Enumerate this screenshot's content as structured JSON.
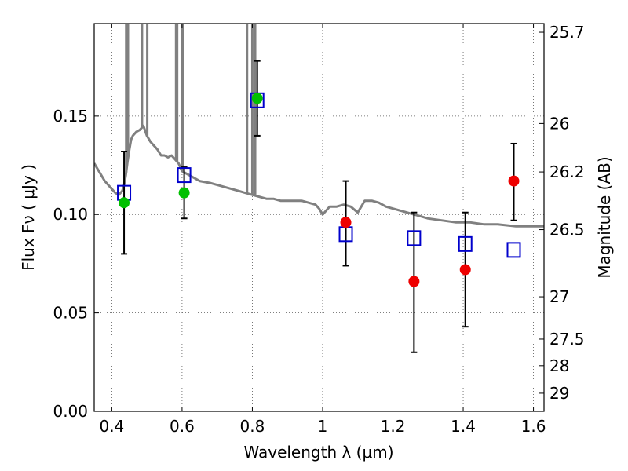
{
  "chart_data": {
    "type": "scatter",
    "xlabel": "Wavelength  λ (μm)",
    "ylabel": "Flux  Fν  ( μJy )",
    "y2label": "Magnitude (AB)",
    "xlim": [
      0.35,
      1.63
    ],
    "ylim": [
      0.0,
      0.197
    ],
    "grid": true,
    "x_ticks": [
      0.4,
      0.6,
      0.8,
      1.0,
      1.2,
      1.4,
      1.6
    ],
    "x_tick_labels": [
      "0.4",
      "0.6",
      "0.8",
      "1",
      "1.2",
      "1.4",
      "1.6"
    ],
    "y_ticks": [
      0.0,
      0.05,
      0.1,
      0.15
    ],
    "y_tick_labels": [
      "0.00",
      "0.05",
      "0.10",
      "0.15"
    ],
    "y2_ticks": [
      {
        "label": "25.7",
        "flux": 0.1926
      },
      {
        "label": "26",
        "flux": 0.1462
      },
      {
        "label": "26.2",
        "flux": 0.1216
      },
      {
        "label": "26.5",
        "flux": 0.0923
      },
      {
        "label": "27",
        "flux": 0.0582
      },
      {
        "label": "27.5",
        "flux": 0.0367
      },
      {
        "label": "28",
        "flux": 0.0232
      },
      {
        "label": "29",
        "flux": 0.0092
      }
    ],
    "colors": {
      "model": "#808080",
      "model_boxes": "#0000cc",
      "green_points": "#00c000",
      "red_points": "#ee0000",
      "errorbars": "#000000",
      "grid": "#555555"
    },
    "series": [
      {
        "name": "SED model",
        "type": "line",
        "x": [
          0.35,
          0.36,
          0.38,
          0.4,
          0.41,
          0.42,
          0.43,
          0.435,
          0.44,
          0.445,
          0.45,
          0.455,
          0.46,
          0.47,
          0.48,
          0.49,
          0.5,
          0.51,
          0.52,
          0.53,
          0.54,
          0.55,
          0.56,
          0.57,
          0.58,
          0.59,
          0.6,
          0.62,
          0.65,
          0.68,
          0.7,
          0.72,
          0.74,
          0.76,
          0.78,
          0.8,
          0.82,
          0.84,
          0.86,
          0.88,
          0.9,
          0.92,
          0.94,
          0.96,
          0.98,
          0.99,
          1.0,
          1.01,
          1.02,
          1.04,
          1.06,
          1.08,
          1.1,
          1.12,
          1.14,
          1.16,
          1.18,
          1.2,
          1.22,
          1.24,
          1.26,
          1.28,
          1.3,
          1.34,
          1.38,
          1.42,
          1.46,
          1.5,
          1.55,
          1.6,
          1.63
        ],
        "y": [
          0.126,
          0.123,
          0.117,
          0.113,
          0.111,
          0.11,
          0.112,
          0.115,
          0.12,
          0.127,
          0.133,
          0.138,
          0.14,
          0.142,
          0.143,
          0.145,
          0.14,
          0.137,
          0.135,
          0.133,
          0.13,
          0.13,
          0.129,
          0.13,
          0.128,
          0.126,
          0.122,
          0.12,
          0.117,
          0.116,
          0.115,
          0.114,
          0.113,
          0.112,
          0.111,
          0.11,
          0.109,
          0.108,
          0.108,
          0.107,
          0.107,
          0.107,
          0.107,
          0.106,
          0.105,
          0.103,
          0.1,
          0.102,
          0.104,
          0.104,
          0.105,
          0.104,
          0.101,
          0.107,
          0.107,
          0.106,
          0.104,
          0.103,
          0.102,
          0.101,
          0.1,
          0.099,
          0.098,
          0.097,
          0.096,
          0.096,
          0.095,
          0.095,
          0.094,
          0.094,
          0.094
        ]
      },
      {
        "name": "emission lines",
        "type": "spikes",
        "x": [
          0.441,
          0.446,
          0.486,
          0.501,
          0.583,
          0.586,
          0.6,
          0.603,
          0.785,
          0.8,
          0.808
        ]
      },
      {
        "name": "model photometry",
        "type": "scatter",
        "marker": "square-open",
        "x": [
          0.435,
          0.606,
          0.814,
          1.066,
          1.26,
          1.406,
          1.544
        ],
        "y": [
          0.111,
          0.12,
          0.158,
          0.09,
          0.088,
          0.085,
          0.082
        ]
      },
      {
        "name": "observed (green)",
        "type": "scatter",
        "marker": "circle",
        "x": [
          0.435,
          0.606,
          0.814
        ],
        "y": [
          0.106,
          0.111,
          0.159
        ],
        "yerr_low": [
          0.08,
          0.098,
          0.14
        ],
        "yerr_high": [
          0.132,
          0.124,
          0.178
        ]
      },
      {
        "name": "observed (red)",
        "type": "scatter",
        "marker": "circle",
        "x": [
          1.066,
          1.26,
          1.406,
          1.544
        ],
        "y": [
          0.096,
          0.066,
          0.072,
          0.117
        ],
        "yerr_low": [
          0.074,
          0.03,
          0.043,
          0.097
        ],
        "yerr_high": [
          0.117,
          0.101,
          0.101,
          0.136
        ]
      }
    ]
  }
}
